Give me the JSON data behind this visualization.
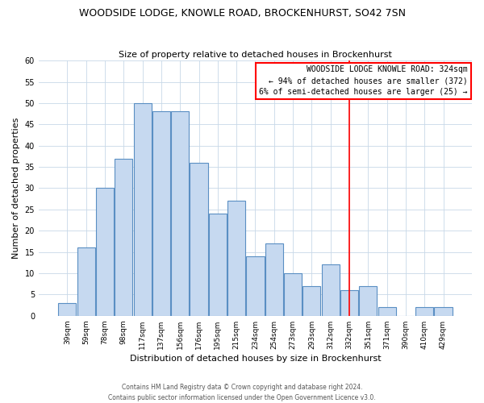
{
  "title": "WOODSIDE LODGE, KNOWLE ROAD, BROCKENHURST, SO42 7SN",
  "subtitle": "Size of property relative to detached houses in Brockenhurst",
  "xlabel": "Distribution of detached houses by size in Brockenhurst",
  "ylabel": "Number of detached properties",
  "bar_labels": [
    "39sqm",
    "59sqm",
    "78sqm",
    "98sqm",
    "117sqm",
    "137sqm",
    "156sqm",
    "176sqm",
    "195sqm",
    "215sqm",
    "234sqm",
    "254sqm",
    "273sqm",
    "293sqm",
    "312sqm",
    "332sqm",
    "351sqm",
    "371sqm",
    "390sqm",
    "410sqm",
    "429sqm"
  ],
  "bar_values": [
    3,
    16,
    30,
    37,
    50,
    48,
    48,
    36,
    24,
    27,
    14,
    17,
    10,
    7,
    12,
    6,
    7,
    2,
    0,
    2,
    2
  ],
  "bar_color": "#c6d9f0",
  "bar_edge_color": "#5a8fc3",
  "reference_line_x": 15.0,
  "ylim": [
    0,
    60
  ],
  "yticks": [
    0,
    5,
    10,
    15,
    20,
    25,
    30,
    35,
    40,
    45,
    50,
    55,
    60
  ],
  "annotation_title": "WOODSIDE LODGE KNOWLE ROAD: 324sqm",
  "annotation_line1": "← 94% of detached houses are smaller (372)",
  "annotation_line2": "6% of semi-detached houses are larger (25) →",
  "footer1": "Contains HM Land Registry data © Crown copyright and database right 2024.",
  "footer2": "Contains public sector information licensed under the Open Government Licence v3.0."
}
